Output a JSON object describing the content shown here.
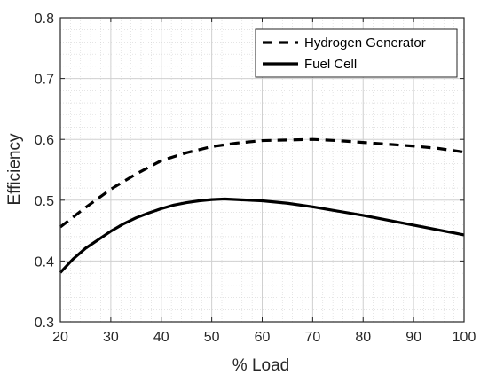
{
  "chart_data": {
    "type": "line",
    "title": "",
    "xlabel": "% Load",
    "ylabel": "Efficiency",
    "xlim": [
      20,
      100
    ],
    "ylim": [
      0.3,
      0.8
    ],
    "xticks": [
      20,
      30,
      40,
      50,
      60,
      70,
      80,
      90,
      100
    ],
    "yticks": [
      0.3,
      0.4,
      0.5,
      0.6,
      0.7,
      0.8
    ],
    "xtick_labels": [
      "20",
      "30",
      "40",
      "50",
      "60",
      "70",
      "80",
      "90",
      "100"
    ],
    "ytick_labels": [
      "0.3",
      "0.4",
      "0.5",
      "0.6",
      "0.7",
      "0.8"
    ],
    "grid": true,
    "minor_grid": true,
    "legend_position": "top-right",
    "series": [
      {
        "name": "Hydrogen Generator",
        "style": "dashed",
        "color": "#000000",
        "x": [
          20,
          25,
          30,
          35,
          40,
          45,
          50,
          55,
          60,
          65,
          70,
          75,
          80,
          85,
          90,
          95,
          100
        ],
        "y": [
          0.456,
          0.488,
          0.518,
          0.543,
          0.565,
          0.578,
          0.588,
          0.594,
          0.598,
          0.599,
          0.6,
          0.598,
          0.595,
          0.592,
          0.589,
          0.585,
          0.579
        ]
      },
      {
        "name": "Fuel Cell",
        "style": "solid",
        "color": "#000000",
        "x": [
          20,
          22.5,
          25,
          27.5,
          30,
          32.5,
          35,
          37.5,
          40,
          42.5,
          45,
          47.5,
          50,
          52.5,
          55,
          60,
          65,
          70,
          75,
          80,
          85,
          90,
          95,
          100
        ],
        "y": [
          0.381,
          0.403,
          0.421,
          0.435,
          0.449,
          0.461,
          0.471,
          0.479,
          0.486,
          0.492,
          0.496,
          0.499,
          0.501,
          0.502,
          0.501,
          0.499,
          0.495,
          0.489,
          0.482,
          0.475,
          0.467,
          0.459,
          0.451,
          0.443
        ]
      }
    ]
  }
}
